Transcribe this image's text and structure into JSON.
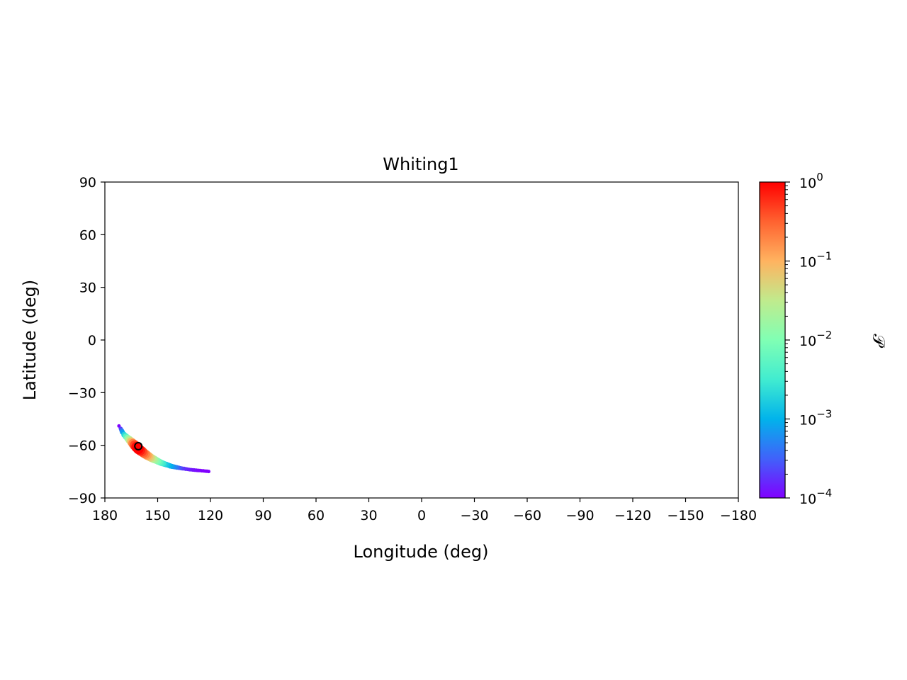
{
  "chart_data": {
    "type": "scatter",
    "title": "Whiting1",
    "xlabel": "Longitude (deg)",
    "ylabel": "Latitude (deg)",
    "xlim": [
      180,
      -180
    ],
    "ylim": [
      -90,
      90
    ],
    "x_ticks": [
      180,
      150,
      120,
      90,
      60,
      30,
      0,
      -30,
      -60,
      -90,
      -120,
      -150,
      -180
    ],
    "x_tick_labels": [
      "180",
      "150",
      "120",
      "90",
      "60",
      "30",
      "0",
      "−30",
      "−60",
      "−90",
      "−120",
      "−150",
      "−180"
    ],
    "y_ticks": [
      90,
      60,
      30,
      0,
      -30,
      -60,
      -90
    ],
    "y_tick_labels": [
      "90",
      "60",
      "30",
      "0",
      "−30",
      "−60",
      "−90"
    ],
    "series": [
      {
        "kind": "probability-scatter",
        "x": [
          172,
          171,
          170.5,
          170,
          169,
          168,
          167,
          166,
          165,
          164,
          163,
          162,
          161,
          160,
          159,
          158,
          157,
          156,
          155,
          154,
          153,
          152,
          151,
          150,
          149,
          148,
          147,
          146,
          145,
          144,
          143,
          142,
          141,
          140,
          139,
          138,
          137,
          136,
          135,
          134,
          133,
          132,
          131,
          130,
          129,
          128,
          127,
          126,
          125,
          124,
          123,
          122,
          121
        ],
        "y": [
          -49,
          -50.5,
          -51.5,
          -52.5,
          -54,
          -55,
          -56,
          -57,
          -58,
          -59,
          -60,
          -61,
          -62,
          -62.8,
          -63.5,
          -64.3,
          -65,
          -65.7,
          -66.3,
          -67,
          -67.5,
          -68,
          -68.5,
          -69,
          -69.5,
          -70,
          -70.3,
          -70.7,
          -71,
          -71.3,
          -71.7,
          -72,
          -72.2,
          -72.4,
          -72.6,
          -72.8,
          -73,
          -73.2,
          -73.3,
          -73.5,
          -73.6,
          -73.8,
          -73.9,
          -74,
          -74.1,
          -74.2,
          -74.3,
          -74.4,
          -74.5,
          -74.6,
          -74.7,
          -74.8,
          -74.9
        ],
        "p": [
          0.0001,
          0.0002,
          0.0004,
          0.0008,
          0.002,
          0.005,
          0.012,
          0.03,
          0.08,
          0.2,
          0.45,
          0.85,
          1.0,
          0.7,
          0.45,
          0.3,
          0.2,
          0.13,
          0.08,
          0.05,
          0.03,
          0.02,
          0.013,
          0.009,
          0.006,
          0.004,
          0.003,
          0.002,
          0.0015,
          0.0012,
          0.001,
          0.0008,
          0.0006,
          0.0005,
          0.0004,
          0.0003,
          0.00025,
          0.0002,
          0.00018,
          0.00016,
          0.00015,
          0.00014,
          0.00013,
          0.00012,
          0.00012,
          0.00011,
          0.00011,
          0.0001,
          0.0001,
          0.0001,
          0.0001,
          0.0001,
          0.0001
        ]
      }
    ],
    "marker": {
      "x": 161,
      "y": -60.5,
      "color": "#ff0000",
      "edge_color": "#000000"
    },
    "colorbar": {
      "scale": "log",
      "min": 0.0001,
      "max": 1,
      "tick_values": [
        1,
        0.1,
        0.01,
        0.001,
        0.0001
      ],
      "tick_exponents": [
        "0",
        "−1",
        "−2",
        "−3",
        "−4"
      ],
      "tick_base": "10",
      "label": "𝒫",
      "colormap": "rainbow",
      "colormap_stops": [
        "#8000ff",
        "#4062fa",
        "#01b3eb",
        "#41ecd0",
        "#80ffb4",
        "#c0eb8d",
        "#ffb360",
        "#ff6230",
        "#ff0000"
      ]
    }
  }
}
